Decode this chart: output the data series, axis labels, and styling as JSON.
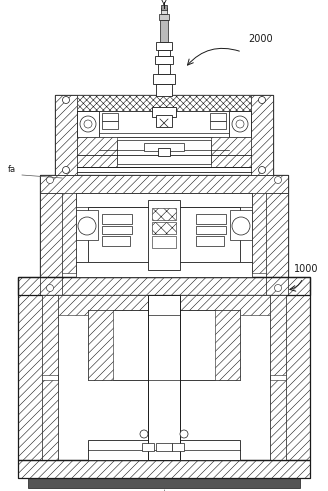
{
  "bg_color": "#ffffff",
  "lc": "#1a1a1a",
  "label_2000": "2000",
  "label_1000": "1000",
  "label_fa": "fa",
  "fig_width": 3.28,
  "fig_height": 4.91,
  "dpi": 100,
  "hatch_lw": 0.4,
  "main_lw": 0.9
}
